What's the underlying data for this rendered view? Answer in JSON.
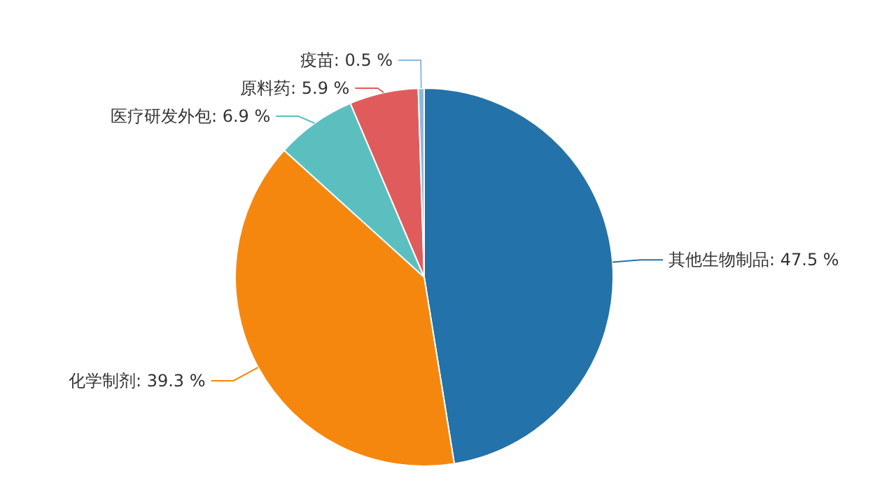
{
  "chart_data": {
    "type": "pie",
    "categories": [
      "其他生物制品",
      "化学制剂",
      "医疗研发外包",
      "原料药",
      "疫苗"
    ],
    "values": [
      47.5,
      39.3,
      6.9,
      5.9,
      0.5
    ],
    "value_labels": [
      ": 47.5 %",
      ": 39.3 %",
      ": 6.9 %",
      ": 5.9 %",
      ": 0.5 %"
    ],
    "colors": [
      "#2372aa",
      "#f5870f",
      "#5bbfc0",
      "#e05c5c",
      "#8fb8dc"
    ]
  }
}
